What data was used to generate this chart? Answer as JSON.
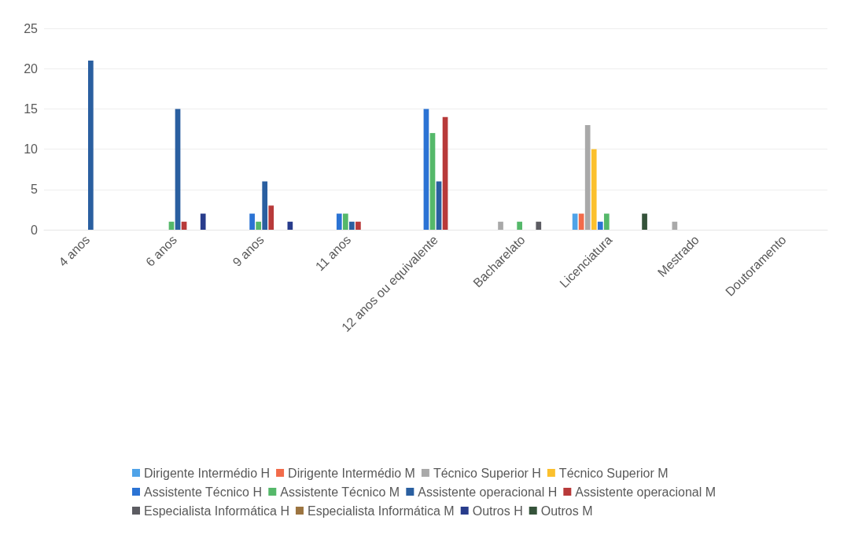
{
  "chart_data": {
    "type": "bar",
    "categories": [
      "4 anos",
      "6 anos",
      "9 anos",
      "11 anos",
      "12 anos ou equivalente",
      "Bacharelato",
      "Licenciatura",
      "Mestrado",
      "Doutoramento"
    ],
    "ylim": [
      0,
      25
    ],
    "yticks": [
      0,
      5,
      10,
      15,
      20,
      25
    ],
    "grid": "y",
    "legend": "bottom",
    "series": [
      {
        "name": "Dirigente Intermédio H",
        "color": "#4fa3e8",
        "values": [
          0,
          0,
          0,
          0,
          0,
          0,
          2,
          0,
          0
        ]
      },
      {
        "name": "Dirigente Intermédio M",
        "color": "#f26b4a",
        "values": [
          0,
          0,
          0,
          0,
          0,
          0,
          2,
          0,
          0
        ]
      },
      {
        "name": "Técnico Superior H",
        "color": "#a9a9a9",
        "values": [
          0,
          0,
          0,
          0,
          0,
          1,
          13,
          1,
          0
        ]
      },
      {
        "name": "Técnico Superior M",
        "color": "#fbc02d",
        "values": [
          0,
          0,
          0,
          0,
          0,
          0,
          10,
          0,
          0
        ]
      },
      {
        "name": "Assistente Técnico H",
        "color": "#2b73d4",
        "values": [
          0,
          0,
          2,
          2,
          15,
          0,
          1,
          0,
          0
        ]
      },
      {
        "name": "Assistente Técnico M",
        "color": "#55b86a",
        "values": [
          0,
          1,
          1,
          2,
          12,
          1,
          2,
          0,
          0
        ]
      },
      {
        "name": "Assistente operacional H",
        "color": "#2a5fa0",
        "values": [
          21,
          15,
          6,
          1,
          6,
          0,
          0,
          0,
          0
        ]
      },
      {
        "name": "Assistente operacional M",
        "color": "#b83a3a",
        "values": [
          0,
          1,
          3,
          1,
          14,
          0,
          0,
          0,
          0
        ]
      },
      {
        "name": "Especialista Informática H",
        "color": "#5c5c62",
        "values": [
          0,
          0,
          0,
          0,
          0,
          1,
          0,
          0,
          0
        ]
      },
      {
        "name": "Especialista Informática M",
        "color": "#9c7440",
        "values": [
          0,
          0,
          0,
          0,
          0,
          0,
          0,
          0,
          0
        ]
      },
      {
        "name": "Outros H",
        "color": "#283c8c",
        "values": [
          0,
          2,
          1,
          0,
          0,
          0,
          0,
          0,
          0
        ]
      },
      {
        "name": "Outros M",
        "color": "#35533a",
        "values": [
          0,
          0,
          0,
          0,
          0,
          0,
          2,
          0,
          0
        ]
      }
    ]
  }
}
